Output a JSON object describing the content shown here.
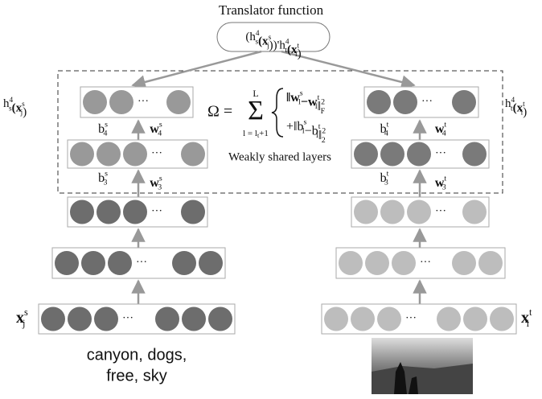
{
  "title": "Translator function",
  "translator": [
    {
      "b": "(h",
      "sup": "4",
      "sub": "s"
    },
    {
      "b": "(x",
      "sup": "s",
      "sub": "j"
    },
    {
      "b": "))'h",
      "sup": "4",
      "sub": "t"
    },
    {
      "b": "(x",
      "sup": "t",
      "sub": "i"
    },
    {
      "b": ")"
    }
  ],
  "source_output": [
    {
      "b": "h",
      "sup": "4",
      "sub": "s"
    },
    {
      "b": "(x",
      "sup": "s",
      "sub": "j"
    },
    {
      "b": ")"
    }
  ],
  "target_output": [
    {
      "b": "h",
      "sup": "4",
      "sub": "t"
    },
    {
      "b": "(x",
      "sup": "t",
      "sub": "i"
    },
    {
      "b": ")"
    }
  ],
  "b4s": [
    {
      "b": "b",
      "sup": "s",
      "sub": "4"
    }
  ],
  "w4s": [
    {
      "b": "w",
      "sup": "s",
      "sub": "4"
    }
  ],
  "b3s": [
    {
      "b": "b",
      "sup": "s",
      "sub": "3"
    }
  ],
  "w3s": [
    {
      "b": "w",
      "sup": "s",
      "sub": "3"
    }
  ],
  "b4t": [
    {
      "b": "b",
      "sup": "t",
      "sub": "4"
    }
  ],
  "w4t": [
    {
      "b": "w",
      "sup": "t",
      "sub": "4"
    }
  ],
  "b3t": [
    {
      "b": "b",
      "sup": "t",
      "sub": "3"
    }
  ],
  "w3t": [
    {
      "b": "w",
      "sup": "t",
      "sub": "3"
    }
  ],
  "omega": {
    "lhs": "Ω =",
    "sum": "Σ",
    "upper": "L",
    "lower": "l = l",
    "lower_sub": "t",
    "lower_tail": "+1",
    "term1": [
      {
        "b": "‖w",
        "sup": "s",
        "sub": "l"
      },
      {
        "b": "−w",
        "sup": "t",
        "sub": "l"
      },
      {
        "b": "‖",
        "sup": "2",
        "sub": "F"
      }
    ],
    "term2": [
      {
        "b": "+‖b",
        "sup": "s",
        "sub": "l"
      },
      {
        "b": "−b",
        "sup": "t",
        "sub": "l"
      },
      {
        "b": "‖",
        "sup": "2",
        "sub": "2"
      }
    ]
  },
  "shared_label": "Weakly shared layers",
  "source_input": [
    {
      "b": "x",
      "sup": "s",
      "sub": "j"
    }
  ],
  "target_input": [
    {
      "b": "x",
      "sup": "t",
      "sub": "i"
    }
  ],
  "tags": [
    "canyon, dogs,",
    "free, sky"
  ],
  "ellipsis": "···"
}
